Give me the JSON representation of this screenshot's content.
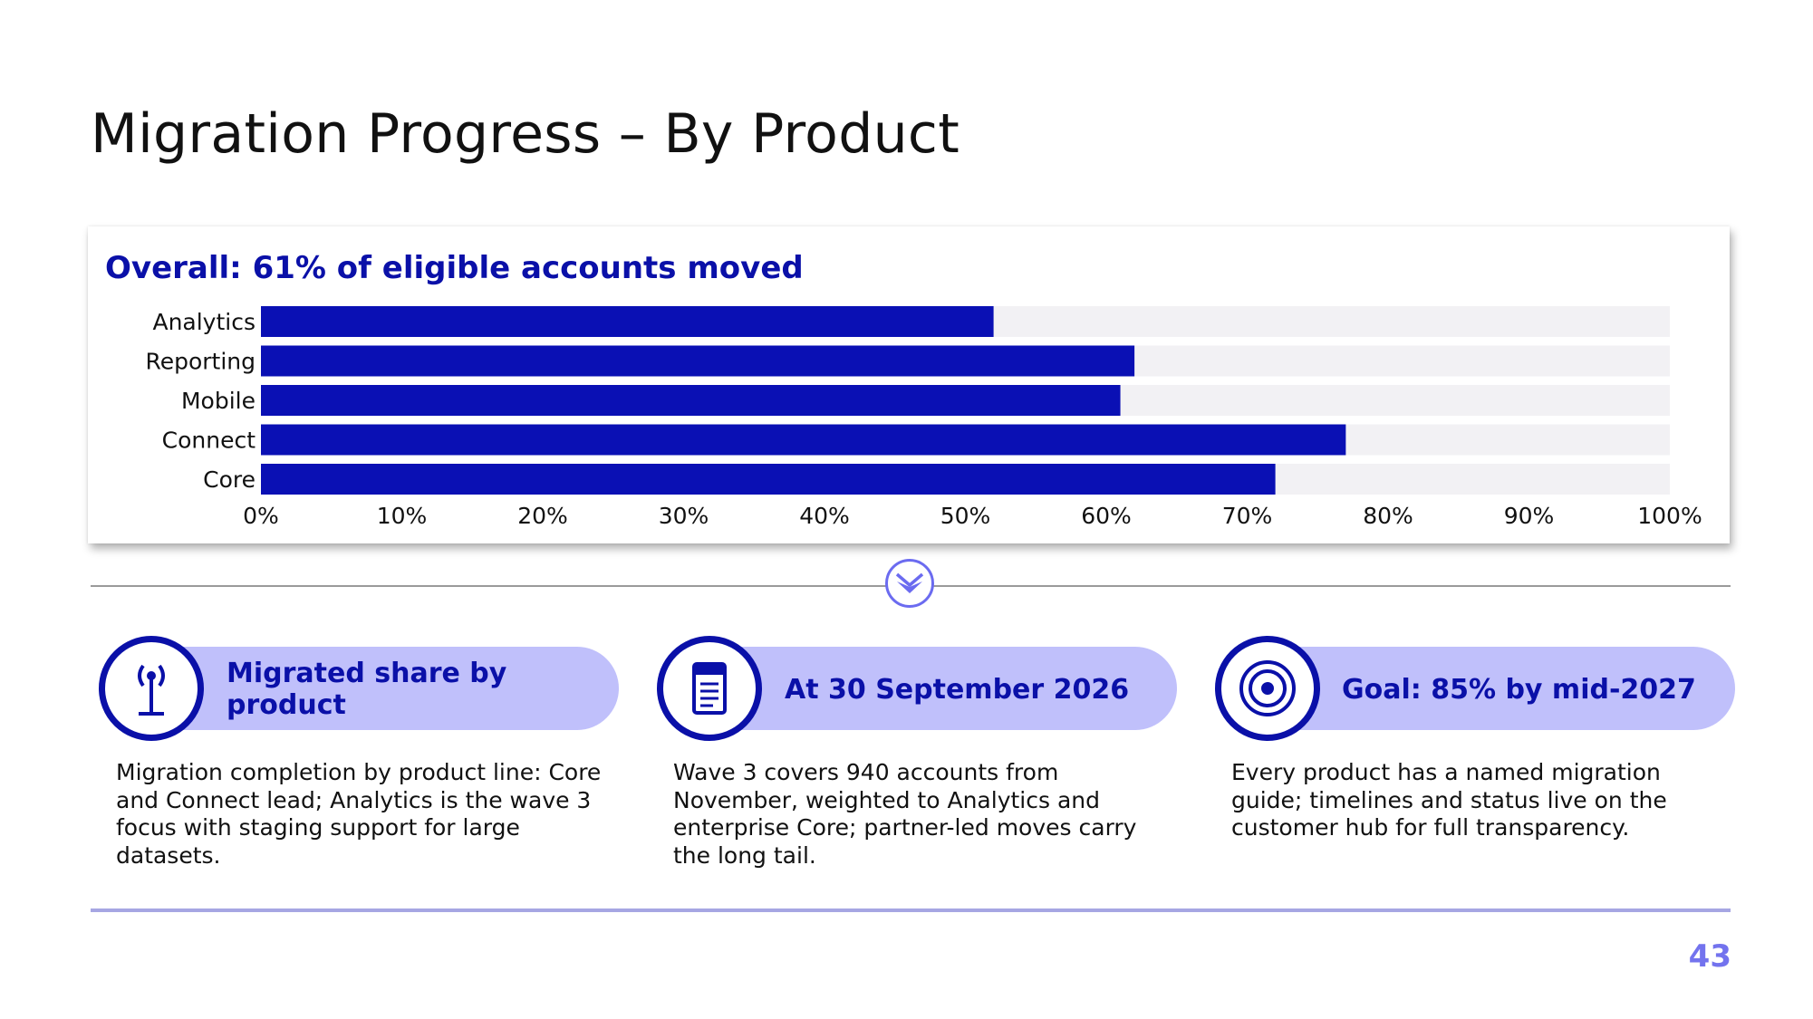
{
  "slide": {
    "title": "Migration Progress – By Product",
    "page_number": "43"
  },
  "chart_data": {
    "type": "bar",
    "orientation": "horizontal",
    "title": "Overall: 61% of eligible accounts moved",
    "categories": [
      "Analytics",
      "Reporting",
      "Mobile",
      "Connect",
      "Core"
    ],
    "values": [
      52,
      62,
      61,
      77,
      72
    ],
    "value_unit": "%",
    "xlim": [
      0,
      100
    ],
    "x_ticks": [
      "0%",
      "10%",
      "20%",
      "30%",
      "40%",
      "50%",
      "60%",
      "70%",
      "80%",
      "90%",
      "100%"
    ],
    "xlabel": "",
    "ylabel": "",
    "grid": false,
    "legend": "none",
    "colors": {
      "bar": "#0a10b4",
      "track": "#f2f1f4"
    }
  },
  "cards": [
    {
      "icon": "antenna-icon",
      "label": "Migrated share by product",
      "body": "Migration completion by product line: Core and Connect lead; Analytics is the wave 3 focus with staging support for large datasets."
    },
    {
      "icon": "document-icon",
      "label": "At 30 September 2026",
      "body": "Wave 3 covers 940 accounts from November, weighted to Analytics and enterprise Core; partner-led moves carry the long tail."
    },
    {
      "icon": "target-icon",
      "label": "Goal: 85% by mid-2027",
      "body": "Every product has a named migration guide; timelines and status live on the customer hub for full transparency."
    }
  ],
  "colors": {
    "accent": "#0a10a8",
    "pill": "#c0c0fb",
    "divider_icon": "#6b6bf0",
    "footer_rule": "#a6a6e3",
    "page_number": "#7373ee"
  },
  "divider_icon": "double-chevron-down-icon"
}
